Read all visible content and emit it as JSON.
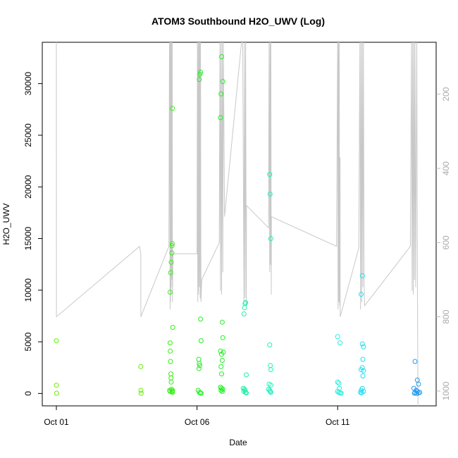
{
  "chart_data": {
    "type": "scatter",
    "title": "ATOM3 Southbound H2O_UWV (Log)",
    "xlabel": "Date",
    "ylabel": "H2O_UWV",
    "x_ticks": [
      {
        "date": "2014-10-01",
        "label": "Oct 01"
      },
      {
        "date": "2014-10-06",
        "label": "Oct 06"
      },
      {
        "date": "2014-10-11",
        "label": "Oct 11"
      }
    ],
    "xlim": [
      "2014-10-01T00:00",
      "2014-10-14T00:00"
    ],
    "ylim": [
      -1200,
      34000
    ],
    "y_ticks": [
      0,
      5000,
      10000,
      15000,
      20000,
      25000,
      30000
    ],
    "right_axis": {
      "quantity": "pressure",
      "inverted": true,
      "ticks": [
        200,
        400,
        600,
        800,
        1000
      ],
      "range": [
        60,
        1040
      ],
      "color": "#bbbbbb"
    },
    "grid": false,
    "points_color_note": "colored by time from yellow-green to blue",
    "series": [
      {
        "color": "#66ee00",
        "points": [
          [
            "2014-10-01T00:00",
            5100
          ],
          [
            "2014-10-01T00:00",
            800
          ],
          [
            "2014-10-01T00:10",
            30
          ],
          [
            "2014-10-04T00:00",
            2600
          ],
          [
            "2014-10-04T00:10",
            300
          ],
          [
            "2014-10-04T00:20",
            20
          ]
        ]
      },
      {
        "color": "#33ee11",
        "points": [
          [
            "2014-10-05T01:00",
            9800
          ],
          [
            "2014-10-05T01:30",
            11700
          ],
          [
            "2014-10-05T02:00",
            12700
          ],
          [
            "2014-10-05T02:30",
            13600
          ],
          [
            "2014-10-05T02:40",
            14300
          ],
          [
            "2014-10-05T02:50",
            14500
          ],
          [
            "2014-10-05T03:00",
            27600
          ],
          [
            "2014-10-05T03:20",
            6400
          ],
          [
            "2014-10-05T01:00",
            4900
          ],
          [
            "2014-10-05T01:10",
            4100
          ],
          [
            "2014-10-05T01:20",
            3100
          ],
          [
            "2014-10-05T01:40",
            1900
          ],
          [
            "2014-10-05T01:50",
            1500
          ],
          [
            "2014-10-05T02:00",
            1100
          ],
          [
            "2014-10-05T00:40",
            300
          ],
          [
            "2014-10-05T01:00",
            200
          ],
          [
            "2014-10-05T02:10",
            400
          ],
          [
            "2014-10-05T02:40",
            200
          ],
          [
            "2014-10-05T03:00",
            100
          ],
          [
            "2014-10-05T03:10",
            300
          ]
        ]
      },
      {
        "color": "#22ee22",
        "points": [
          [
            "2014-10-06T02:00",
            30400
          ],
          [
            "2014-10-06T02:30",
            30900
          ],
          [
            "2014-10-06T03:00",
            31100
          ],
          [
            "2014-10-06T03:00",
            7200
          ],
          [
            "2014-10-06T03:30",
            5100
          ],
          [
            "2014-10-06T01:30",
            3300
          ],
          [
            "2014-10-06T02:00",
            2900
          ],
          [
            "2014-10-06T02:20",
            2700
          ],
          [
            "2014-10-06T01:40",
            2400
          ],
          [
            "2014-10-06T01:00",
            300
          ],
          [
            "2014-10-06T02:00",
            100
          ],
          [
            "2014-10-06T03:00",
            50
          ],
          [
            "2014-10-06T03:30",
            20
          ],
          [
            "2014-10-06T20:00",
            26700
          ],
          [
            "2014-10-06T20:30",
            29000
          ],
          [
            "2014-10-06T21:00",
            32600
          ],
          [
            "2014-10-06T22:00",
            30200
          ],
          [
            "2014-10-06T21:30",
            6900
          ],
          [
            "2014-10-06T22:00",
            5400
          ],
          [
            "2014-10-06T20:00",
            4100
          ],
          [
            "2014-10-06T21:00",
            3800
          ],
          [
            "2014-10-06T22:30",
            4000
          ],
          [
            "2014-10-06T21:30",
            3200
          ],
          [
            "2014-10-06T20:30",
            2600
          ],
          [
            "2014-10-06T21:00",
            1900
          ],
          [
            "2014-10-06T20:00",
            600
          ],
          [
            "2014-10-06T21:00",
            500
          ],
          [
            "2014-10-06T20:30",
            300
          ],
          [
            "2014-10-06T22:00",
            400
          ],
          [
            "2014-10-06T21:30",
            200
          ]
        ]
      },
      {
        "color": "#22eeaa",
        "points": [
          [
            "2014-10-07T16:00",
            7700
          ],
          [
            "2014-10-07T16:30",
            8300
          ],
          [
            "2014-10-07T17:00",
            8700
          ],
          [
            "2014-10-07T17:30",
            8800
          ],
          [
            "2014-10-07T18:00",
            1800
          ],
          [
            "2014-10-07T15:30",
            500
          ],
          [
            "2014-10-07T16:30",
            400
          ],
          [
            "2014-10-07T17:00",
            300
          ],
          [
            "2014-10-07T17:30",
            100
          ],
          [
            "2014-10-07T16:00",
            200
          ],
          [
            "2014-10-07T18:00",
            50
          ]
        ]
      },
      {
        "color": "#22eebb",
        "points": [
          [
            "2014-10-08T14:00",
            21200
          ],
          [
            "2014-10-08T14:20",
            19300
          ],
          [
            "2014-10-08T15:00",
            15000
          ],
          [
            "2014-10-08T14:00",
            4700
          ],
          [
            "2014-10-08T14:30",
            2700
          ],
          [
            "2014-10-08T15:00",
            2300
          ],
          [
            "2014-10-08T13:30",
            900
          ],
          [
            "2014-10-08T15:00",
            800
          ],
          [
            "2014-10-08T13:00",
            400
          ],
          [
            "2014-10-08T14:00",
            300
          ],
          [
            "2014-10-08T15:00",
            100
          ],
          [
            "2014-10-08T14:30",
            200
          ]
        ]
      },
      {
        "color": "#22eedd",
        "points": [
          [
            "2014-10-11T00:00",
            5500
          ],
          [
            "2014-10-11T02:00",
            4900
          ],
          [
            "2014-10-11T00:00",
            1100
          ],
          [
            "2014-10-11T01:00",
            1000
          ],
          [
            "2014-10-11T01:30",
            500
          ],
          [
            "2014-10-11T00:00",
            200
          ],
          [
            "2014-10-11T01:00",
            100
          ],
          [
            "2014-10-11T02:00",
            50
          ],
          [
            "2014-10-11T03:00",
            20
          ]
        ]
      },
      {
        "color": "#22ddee",
        "points": [
          [
            "2014-10-11T20:00",
            9600
          ],
          [
            "2014-10-11T21:00",
            11400
          ],
          [
            "2014-10-11T21:00",
            4800
          ],
          [
            "2014-10-11T22:00",
            4500
          ],
          [
            "2014-10-11T21:30",
            3300
          ],
          [
            "2014-10-11T21:00",
            2500
          ],
          [
            "2014-10-11T20:00",
            2300
          ],
          [
            "2014-10-11T22:00",
            2200
          ],
          [
            "2014-10-11T21:30",
            1700
          ],
          [
            "2014-10-11T21:00",
            500
          ],
          [
            "2014-10-11T20:00",
            300
          ],
          [
            "2014-10-11T22:00",
            200
          ],
          [
            "2014-10-11T19:30",
            100
          ],
          [
            "2014-10-11T20:30",
            50
          ]
        ]
      },
      {
        "color": "#2299ee",
        "points": [
          [
            "2014-10-13T18:00",
            3100
          ],
          [
            "2014-10-13T20:00",
            1300
          ],
          [
            "2014-10-13T21:00",
            900
          ],
          [
            "2014-10-13T17:00",
            500
          ],
          [
            "2014-10-13T19:00",
            300
          ],
          [
            "2014-10-13T20:00",
            200
          ],
          [
            "2014-10-13T18:00",
            100
          ],
          [
            "2014-10-13T21:00",
            50
          ],
          [
            "2014-10-13T17:30",
            20
          ],
          [
            "2014-10-13T19:30",
            10
          ],
          [
            "2014-10-13T22:00",
            100
          ]
        ]
      }
    ],
    "pressure_trace": {
      "color": "#c8c8c8",
      "points": [
        [
          "2014-10-01T00:00",
          60
        ],
        [
          "2014-10-01T00:05",
          800
        ],
        [
          "2014-10-03T23:00",
          610
        ],
        [
          "2014-10-04T00:00",
          630
        ],
        [
          "2014-10-04T00:05",
          800
        ],
        [
          "2014-10-05T00:00",
          610
        ],
        [
          "2014-10-05T00:30",
          60
        ],
        [
          "2014-10-05T01:00",
          780
        ],
        [
          "2014-10-05T01:10",
          60
        ],
        [
          "2014-10-05T01:20",
          760
        ],
        [
          "2014-10-05T01:30",
          60
        ],
        [
          "2014-10-05T01:40",
          740
        ],
        [
          "2014-10-05T01:50",
          60
        ],
        [
          "2014-10-05T02:00",
          720
        ],
        [
          "2014-10-05T02:10",
          60
        ],
        [
          "2014-10-05T02:20",
          700
        ],
        [
          "2014-10-05T02:30",
          60
        ],
        [
          "2014-10-05T02:40",
          680
        ],
        [
          "2014-10-05T02:50",
          60
        ],
        [
          "2014-10-05T03:00",
          760
        ],
        [
          "2014-10-05T03:30",
          630
        ],
        [
          "2014-10-06T00:00",
          630
        ],
        [
          "2014-10-06T00:20",
          60
        ],
        [
          "2014-10-06T00:40",
          760
        ],
        [
          "2014-10-06T01:00",
          60
        ],
        [
          "2014-10-06T01:20",
          740
        ],
        [
          "2014-10-06T01:40",
          60
        ],
        [
          "2014-10-06T02:00",
          720
        ],
        [
          "2014-10-06T02:20",
          60
        ],
        [
          "2014-10-06T02:40",
          750
        ],
        [
          "2014-10-06T03:00",
          60
        ],
        [
          "2014-10-06T03:20",
          760
        ],
        [
          "2014-10-06T04:00",
          700
        ],
        [
          "2014-10-06T19:00",
          600
        ],
        [
          "2014-10-06T19:30",
          60
        ],
        [
          "2014-10-06T20:00",
          730
        ],
        [
          "2014-10-06T20:30",
          60
        ],
        [
          "2014-10-06T21:00",
          740
        ],
        [
          "2014-10-06T21:30",
          60
        ],
        [
          "2014-10-06T22:00",
          680
        ],
        [
          "2014-10-06T22:30",
          60
        ],
        [
          "2014-10-06T23:30",
          530
        ],
        [
          "2014-10-07T14:00",
          60
        ],
        [
          "2014-10-07T15:00",
          60
        ],
        [
          "2014-10-07T16:00",
          760
        ],
        [
          "2014-10-07T16:30",
          60
        ],
        [
          "2014-10-07T17:00",
          750
        ],
        [
          "2014-10-07T17:30",
          60
        ],
        [
          "2014-10-07T18:00",
          770
        ],
        [
          "2014-10-07T18:10",
          500
        ],
        [
          "2014-10-08T13:00",
          560
        ],
        [
          "2014-10-08T13:30",
          60
        ],
        [
          "2014-10-08T14:00",
          680
        ],
        [
          "2014-10-08T14:20",
          60
        ],
        [
          "2014-10-08T14:40",
          660
        ],
        [
          "2014-10-08T15:00",
          60
        ],
        [
          "2014-10-08T15:20",
          740
        ],
        [
          "2014-10-08T15:30",
          530
        ],
        [
          "2014-10-10T23:00",
          610
        ],
        [
          "2014-10-11T00:00",
          60
        ],
        [
          "2014-10-11T00:20",
          780
        ],
        [
          "2014-10-11T00:40",
          60
        ],
        [
          "2014-10-11T01:00",
          760
        ],
        [
          "2014-10-11T01:20",
          60
        ],
        [
          "2014-10-11T01:40",
          770
        ],
        [
          "2014-10-11T02:00",
          370
        ],
        [
          "2014-10-11T02:10",
          800
        ],
        [
          "2014-10-11T18:00",
          615
        ],
        [
          "2014-10-11T19:00",
          60
        ],
        [
          "2014-10-11T19:30",
          780
        ],
        [
          "2014-10-11T20:00",
          60
        ],
        [
          "2014-10-11T20:30",
          760
        ],
        [
          "2014-10-11T21:00",
          60
        ],
        [
          "2014-10-11T21:30",
          720
        ],
        [
          "2014-10-11T22:00",
          60
        ],
        [
          "2014-10-11T22:30",
          700
        ],
        [
          "2014-10-11T23:00",
          770
        ],
        [
          "2014-10-13T14:00",
          610
        ],
        [
          "2014-10-13T15:00",
          60
        ],
        [
          "2014-10-13T15:30",
          730
        ],
        [
          "2014-10-13T16:00",
          60
        ],
        [
          "2014-10-13T16:30",
          740
        ],
        [
          "2014-10-13T17:00",
          60
        ],
        [
          "2014-10-13T17:30",
          700
        ],
        [
          "2014-10-13T18:00",
          60
        ],
        [
          "2014-10-13T18:30",
          720
        ],
        [
          "2014-10-13T19:30",
          60
        ],
        [
          "2014-10-13T20:00",
          650
        ],
        [
          "2014-10-13T20:30",
          1040
        ]
      ]
    }
  }
}
